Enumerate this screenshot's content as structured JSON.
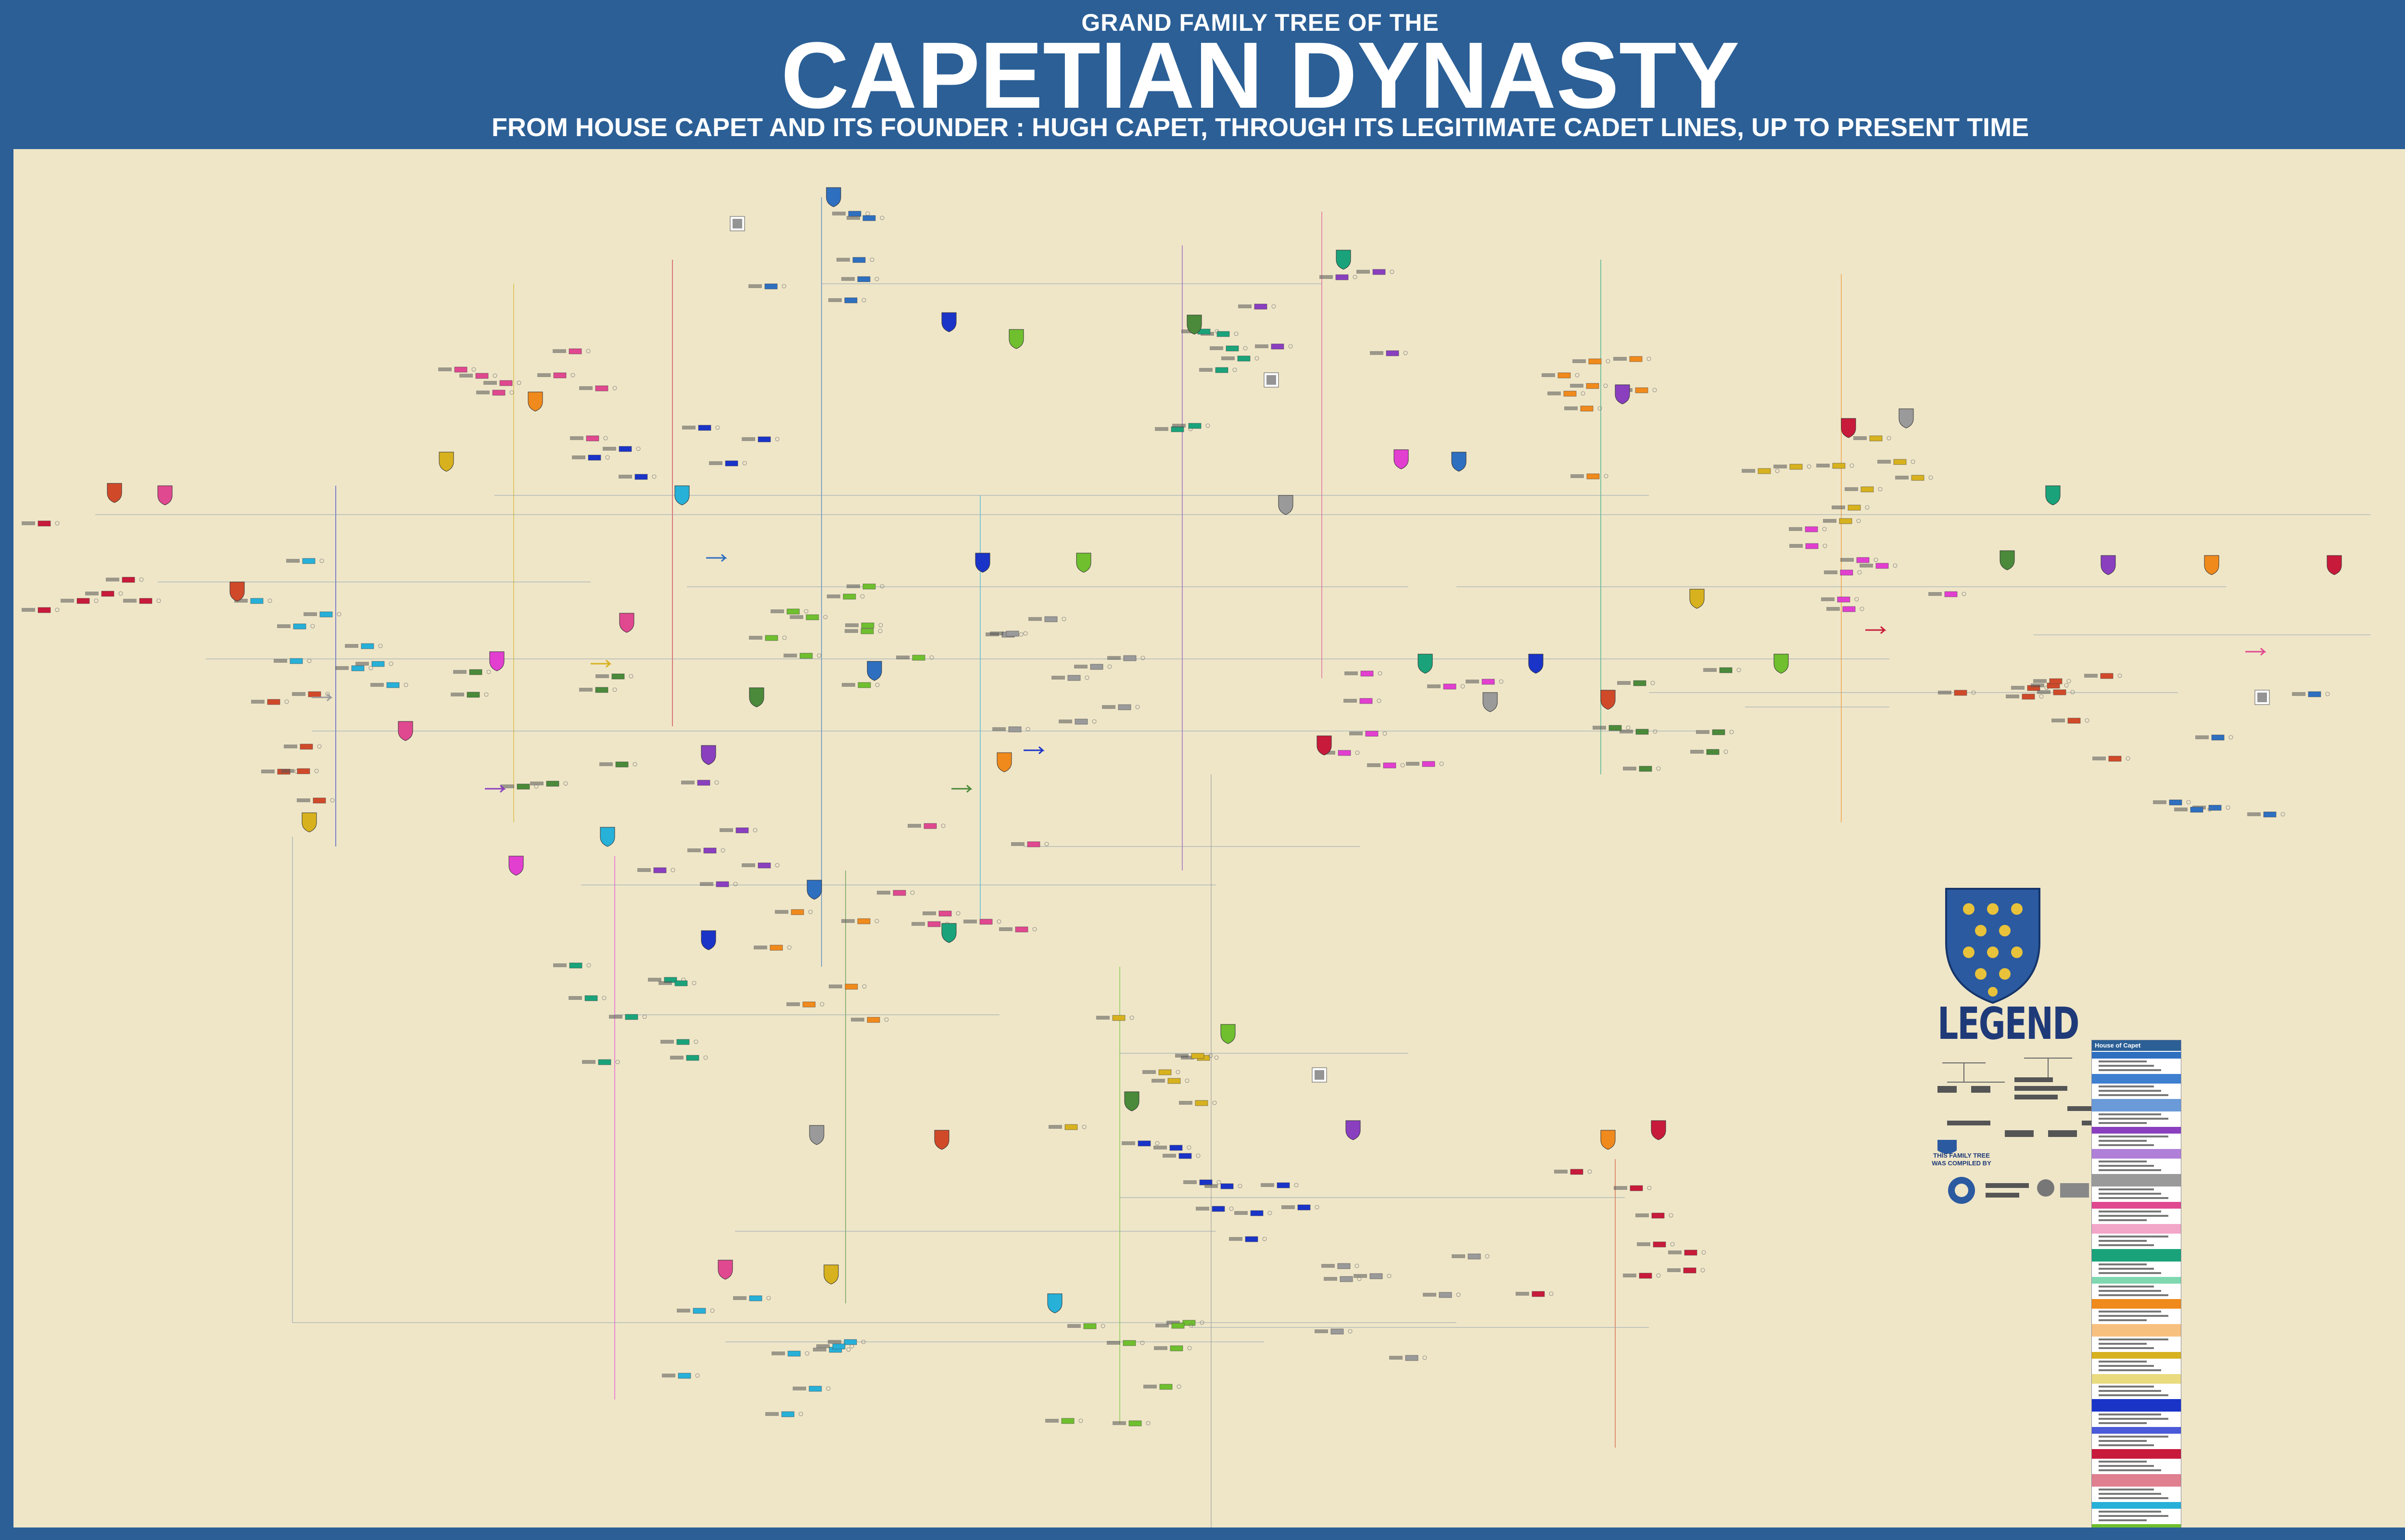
{
  "header": {
    "pre_title": "GRAND FAMILY TREE OF THE",
    "title": "CAPETIAN DYNASTY",
    "subtitle": "FROM HOUSE CAPET AND ITS FOUNDER : HUGH CAPET, THROUGH ITS LEGITIMATE CADET LINES, UP TO PRESENT TIME"
  },
  "legend": {
    "title": "LEGEND",
    "compiled_by": "THIS FAMILY TREE WAS COMPILED BY",
    "list_header": "House of Capet"
  },
  "colors": {
    "frame": "#2b5f96",
    "background": "#efe6c8",
    "capet": "#2e6fbf",
    "burgundy": "#8a3fbf",
    "artois": "#e0488f",
    "evreux": "#1aa37a",
    "anjou": "#f08a1c",
    "valois": "#d7b21e",
    "bourbon": "#1a34c8",
    "dreux": "#c81a3a"
  }
}
